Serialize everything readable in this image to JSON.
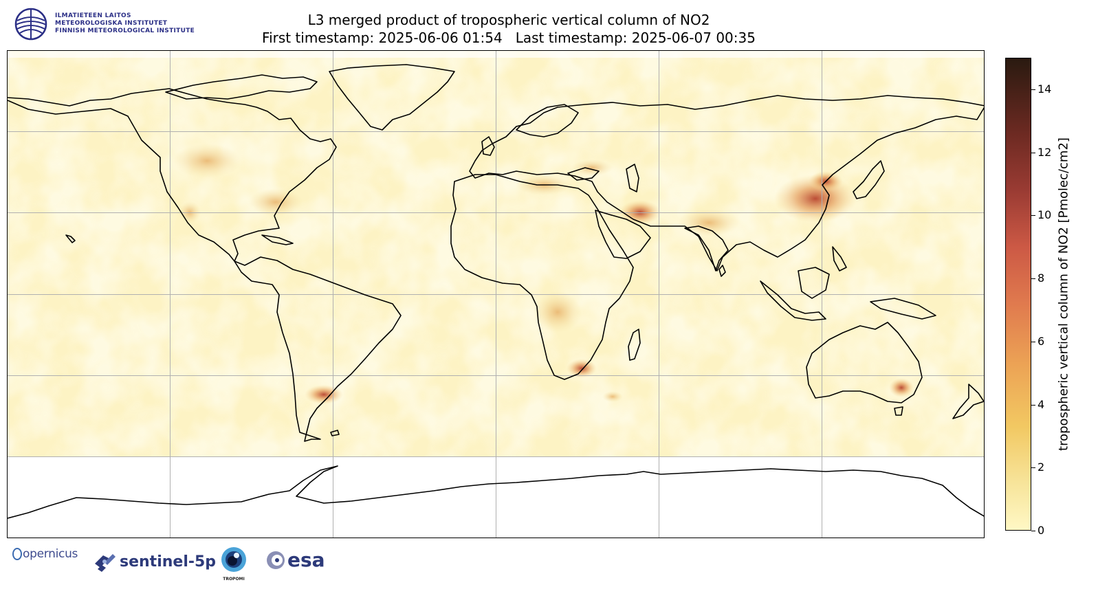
{
  "logo_fmi": {
    "line1": "ILMATIETEEN LAITOS",
    "line2": "METEOROLOGISKA INSTITUTET",
    "line3": "FINNISH METEOROLOGICAL INSTITUTE"
  },
  "title": {
    "line1": "L3 merged product of tropospheric vertical column of NO2",
    "line2": "First timestamp: 2025-06-06 01:54   Last timestamp: 2025-06-07 00:35"
  },
  "map": {
    "projection": "equirectangular",
    "gridlines": true,
    "coastlines": true,
    "colormap_low": "#fff8c5",
    "colormap_mid": "#e07a4e",
    "colormap_high": "#2a1a10",
    "hotspots": [
      "Eastern China",
      "Po Valley",
      "Persian Gulf",
      "Indo-Gangetic Plain",
      "Highveld South Africa",
      "Central Africa",
      "Buenos Aires",
      "Eastern USA"
    ]
  },
  "colorbar": {
    "label": "tropospheric vertical column of NO2 [Pmolec/cm2]",
    "min": 0,
    "max": 15,
    "ticks": [
      "0",
      "2",
      "4",
      "6",
      "8",
      "10",
      "12",
      "14"
    ],
    "tick_values": [
      0,
      2,
      4,
      6,
      8,
      10,
      12,
      14
    ]
  },
  "footer_logos": {
    "copernicus": "opernicus",
    "sentinel": "sentinel-5p",
    "tropomi": "TROPOMI",
    "esa": "esa"
  },
  "icons": {
    "fmi": "fmi-globe-icon",
    "sentinel": "satellite-icon",
    "tropomi": "tropomi-eye-icon",
    "esa": "esa-ring-icon"
  }
}
